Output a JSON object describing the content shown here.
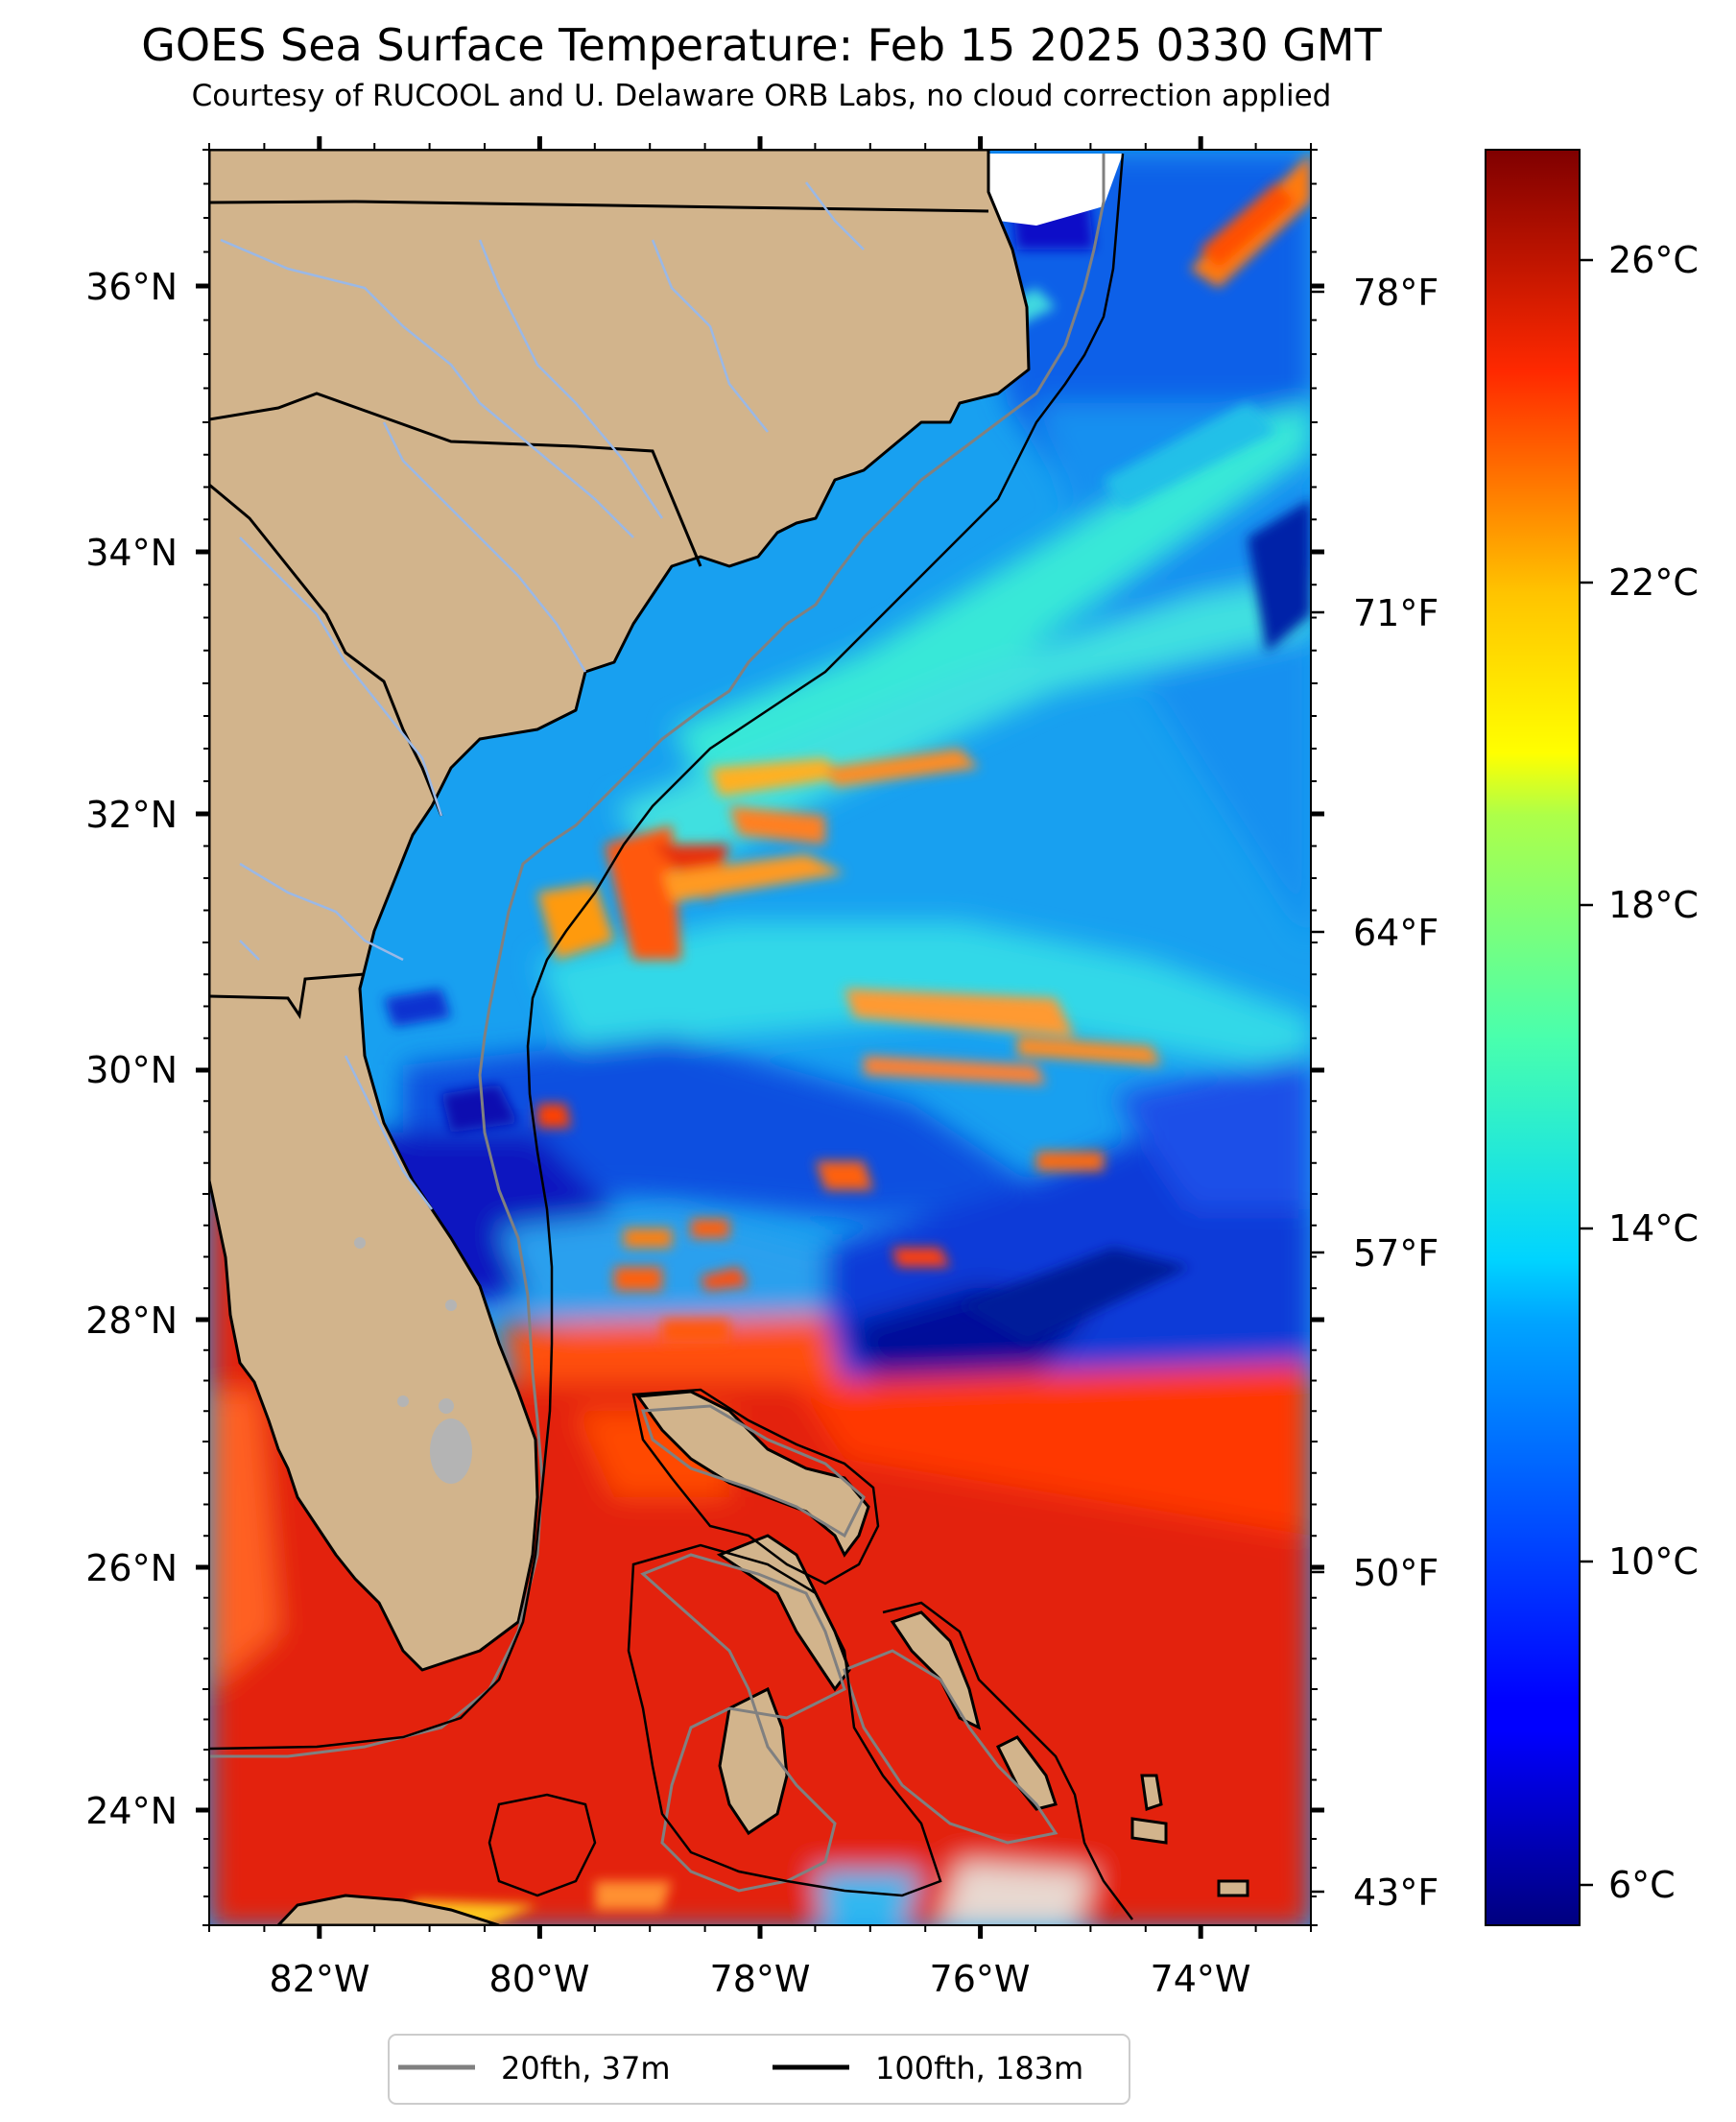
{
  "title": "GOES Sea Surface Temperature: Feb 15 2025 0330 GMT",
  "subtitle": "Courtesy of RUCOOL and U. Delaware ORB Labs, no cloud correction applied",
  "map": {
    "lon_range": [
      -83,
      -73
    ],
    "lat_range": [
      23,
      37
    ],
    "lon_ticks": [
      "82°W",
      "80°W",
      "78°W",
      "76°W",
      "74°W"
    ],
    "lat_ticks": [
      "36°N",
      "34°N",
      "32°N",
      "30°N",
      "28°N",
      "26°N",
      "24°N"
    ],
    "fahrenheit_ticks": [
      "78°F",
      "71°F",
      "64°F",
      "57°F",
      "50°F",
      "43°F"
    ],
    "colors": {
      "land": "#d2b48c",
      "land_border": "#000000",
      "rivers": "#9ab8e6",
      "lake": "#b4b4b4"
    }
  },
  "colorbar": {
    "range_c": [
      5.5,
      27.5
    ],
    "ticks": [
      "26°C",
      "22°C",
      "18°C",
      "14°C",
      "10°C",
      "6°C"
    ],
    "colormap": "jet"
  },
  "legend": {
    "items": [
      {
        "label": "20fth, 37m",
        "color": "#808080"
      },
      {
        "label": "100fth, 183m",
        "color": "#000000"
      }
    ]
  }
}
